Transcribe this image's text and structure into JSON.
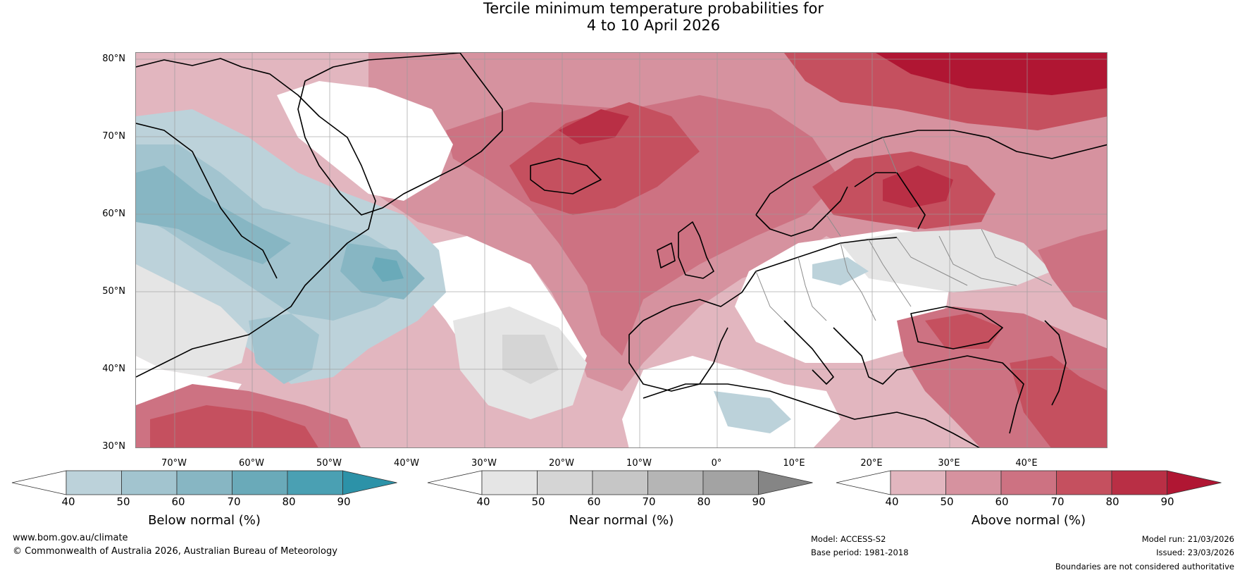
{
  "title": {
    "line1": "Tercile minimum temperature probabilities for",
    "line2": "4 to 10 April 2026"
  },
  "map": {
    "lat_labels": [
      "80°N",
      "70°N",
      "60°N",
      "50°N",
      "40°N",
      "30°N"
    ],
    "lon_labels": [
      "70°W",
      "60°W",
      "50°W",
      "40°W",
      "30°W",
      "20°W",
      "10°W",
      "0°",
      "10°E",
      "20°E",
      "30°E",
      "40°E"
    ]
  },
  "colorbars": [
    {
      "label": "Below normal (%)",
      "ticks": [
        "40",
        "50",
        "60",
        "70",
        "80",
        "90"
      ],
      "colors": [
        "#ffffff",
        "#bcd2da",
        "#a2c4cf",
        "#87b6c3",
        "#6aaab9",
        "#4aa0b3",
        "#2c92a8"
      ]
    },
    {
      "label": "Near normal (%)",
      "ticks": [
        "40",
        "50",
        "60",
        "70",
        "80",
        "90"
      ],
      "colors": [
        "#ffffff",
        "#e5e5e5",
        "#d5d5d5",
        "#c6c6c6",
        "#b5b5b5",
        "#a3a3a3",
        "#858585"
      ]
    },
    {
      "label": "Above normal (%)",
      "ticks": [
        "40",
        "50",
        "60",
        "70",
        "80",
        "90"
      ],
      "colors": [
        "#ffffff",
        "#e2b6bf",
        "#d6929f",
        "#cd7282",
        "#c5505f",
        "#b92f45",
        "#b01633"
      ]
    }
  ],
  "footer": {
    "website": "www.bom.gov.au/climate",
    "copyright": "© Commonwealth of Australia 2026, Australian Bureau of Meteorology",
    "model": "Model: ACCESS-S2",
    "base_period": "Base period: 1981-2018",
    "model_run": "Model run: 21/03/2026",
    "issued": "Issued: 23/03/2026",
    "disclaimer": "Boundaries are not considered authoritative"
  }
}
